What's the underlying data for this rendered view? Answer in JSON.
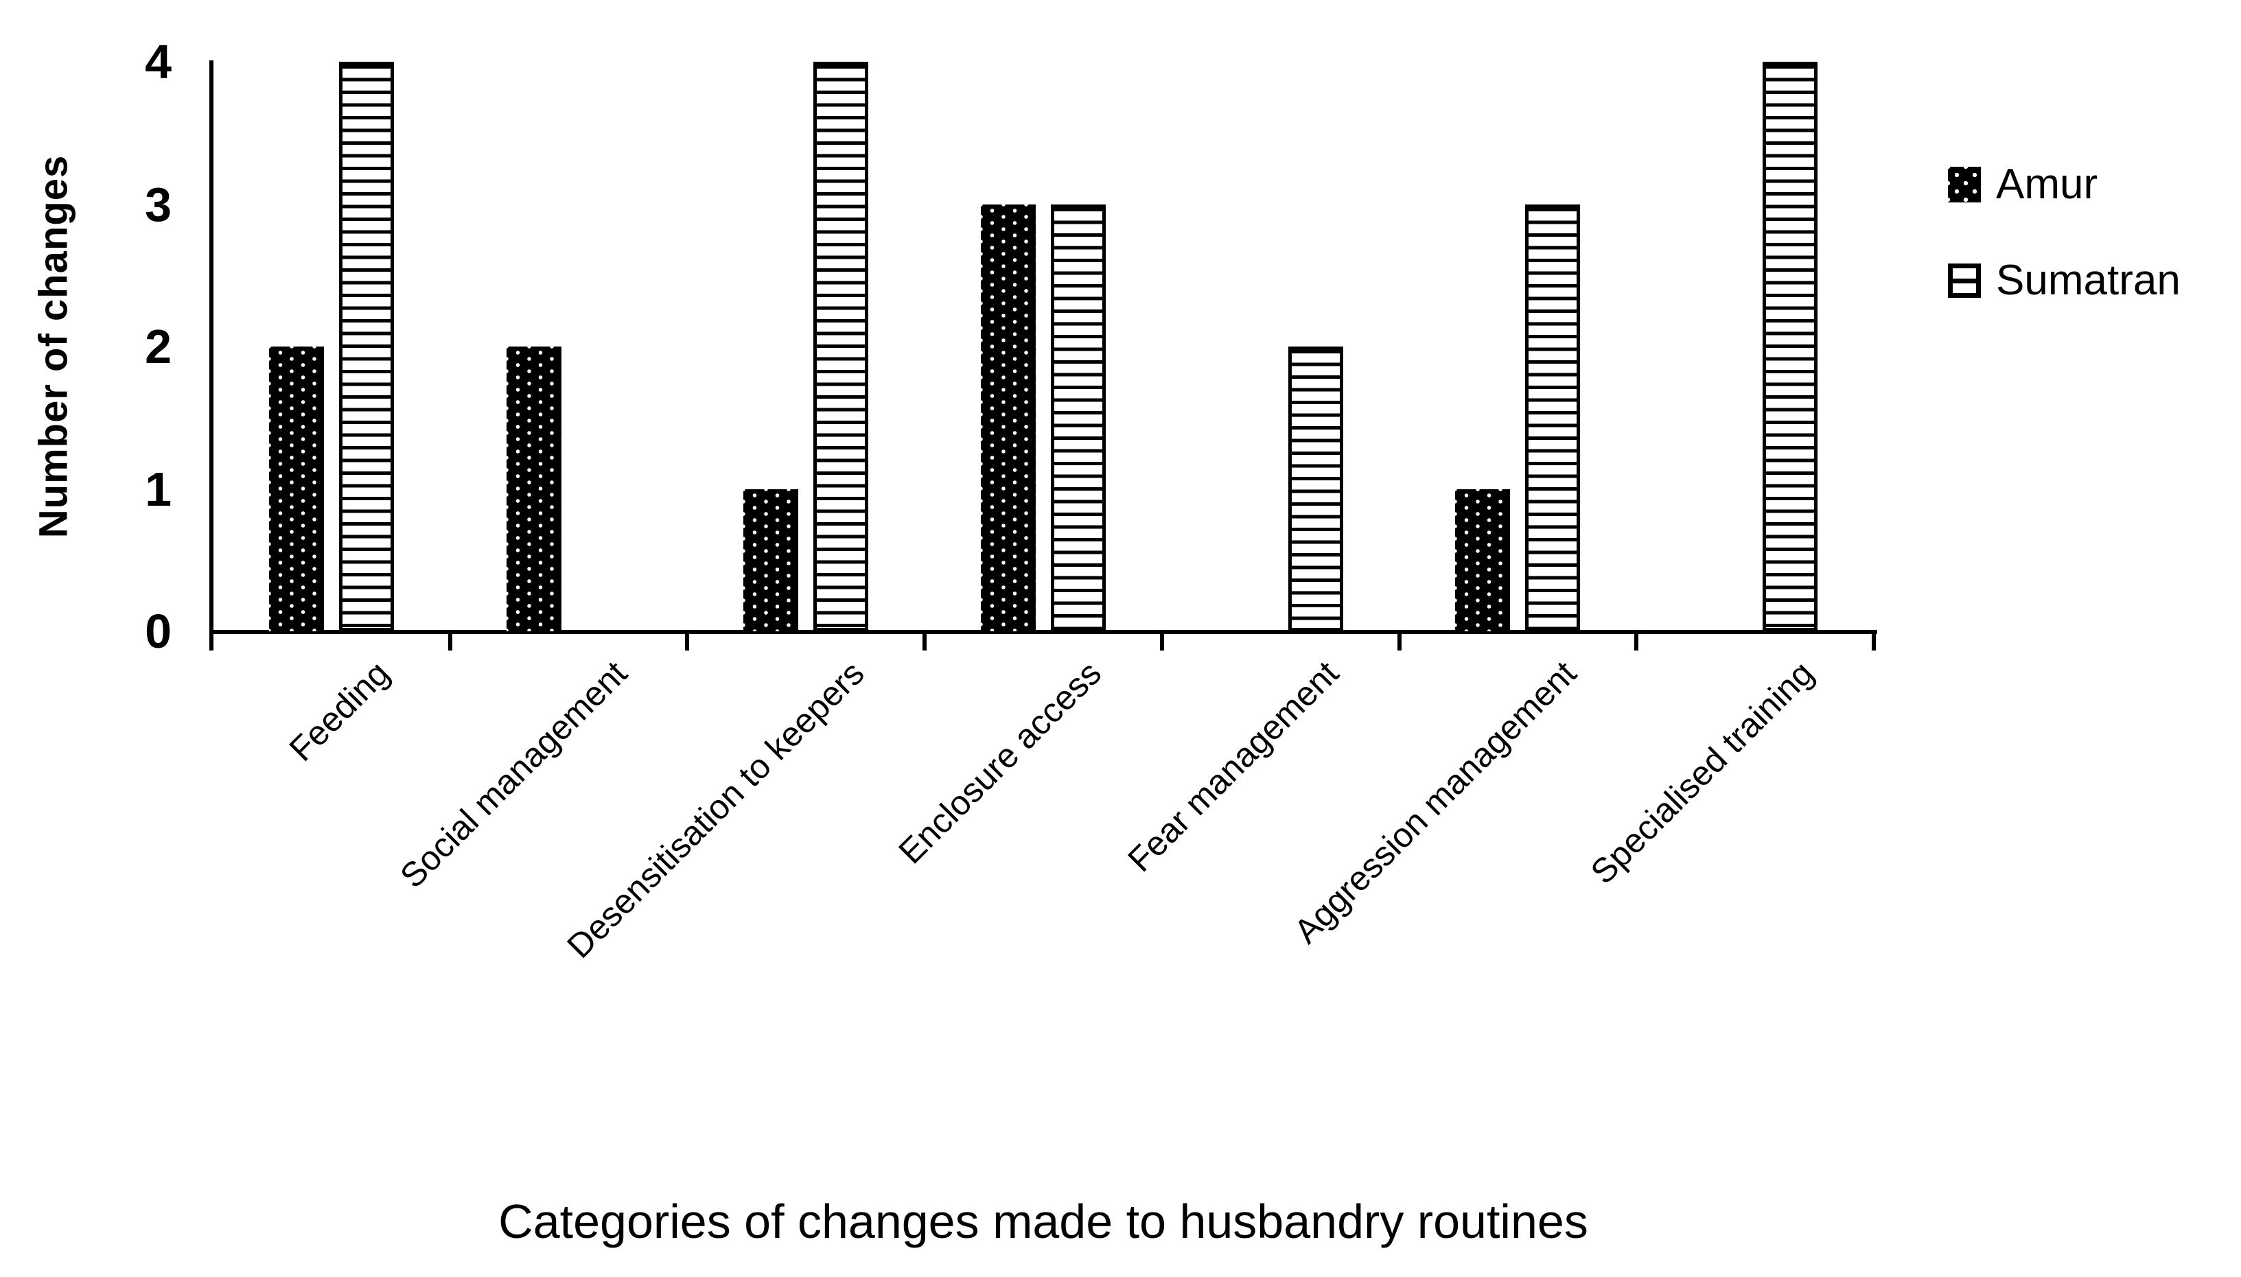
{
  "figure": {
    "background_color": "#ffffff",
    "foreground_color": "#000000"
  },
  "chart_data": {
    "type": "bar",
    "title": "",
    "xlabel": "Categories of changes made to husbandry routines",
    "ylabel": "Number of changes",
    "categories": [
      "Feeding",
      "Social management",
      "Desensitisation to keepers",
      "Enclosure access",
      "Fear management",
      "Aggression management",
      "Specialised training"
    ],
    "series": [
      {
        "name": "Amur",
        "pattern": "black-with-white-dots",
        "values": [
          2,
          2,
          1,
          3,
          0,
          1,
          0
        ]
      },
      {
        "name": "Sumatran",
        "pattern": "white-with-black-horizontal-stripes",
        "values": [
          4,
          0,
          4,
          3,
          2,
          3,
          4
        ]
      }
    ],
    "y_ticks": [
      "0",
      "1",
      "2",
      "3",
      "4"
    ],
    "ylim": [
      0,
      4
    ],
    "grid": "off",
    "legend_position": "right-top",
    "category_label_rotation_deg": -45
  },
  "legend": {
    "items": [
      {
        "label": "Amur",
        "swatch": "amur"
      },
      {
        "label": "Sumatran",
        "swatch": "sumatran"
      }
    ]
  }
}
